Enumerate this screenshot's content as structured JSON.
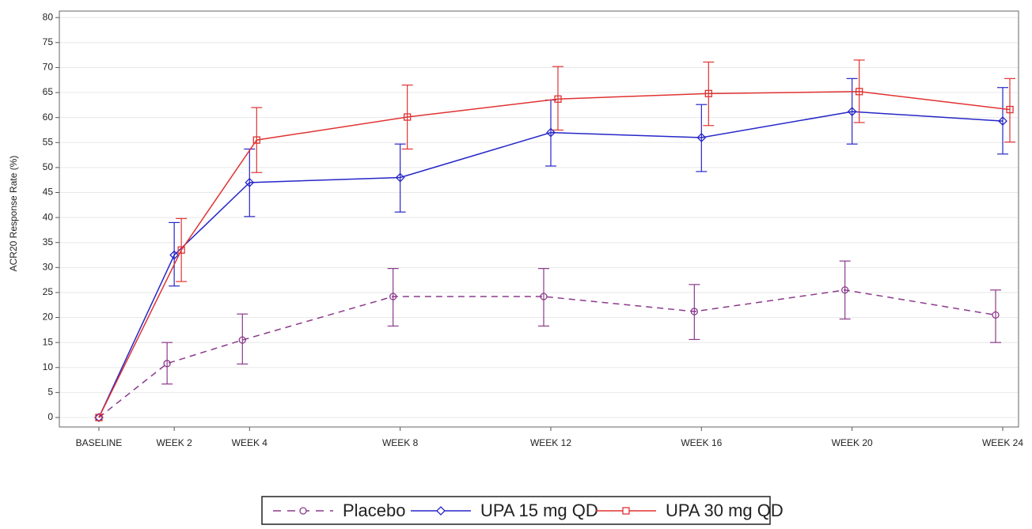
{
  "chart_data": {
    "type": "line",
    "y_label": "ACR20 Response Rate (%)",
    "x": [
      0,
      2,
      4,
      8,
      12,
      16,
      20,
      24
    ],
    "xlim": [
      -1.05,
      24.42
    ],
    "xticks": [
      {
        "value": 0,
        "label": "BASELINE"
      },
      {
        "value": 2,
        "label": "WEEK 2"
      },
      {
        "value": 4,
        "label": "WEEK 4"
      },
      {
        "value": 8,
        "label": "WEEK 8"
      },
      {
        "value": 12,
        "label": "WEEK 12"
      },
      {
        "value": 16,
        "label": "WEEK 16"
      },
      {
        "value": 20,
        "label": "WEEK 20"
      },
      {
        "value": 24,
        "label": "WEEK 24"
      }
    ],
    "ylim": [
      -1.9,
      81.3
    ],
    "yticks": [
      0,
      5,
      10,
      15,
      20,
      25,
      30,
      35,
      40,
      45,
      50,
      55,
      60,
      65,
      70,
      75,
      80
    ],
    "grid": true,
    "legend": "bottom",
    "series": [
      {
        "name": "Placebo",
        "color": "#8b3a8b",
        "marker": "circle",
        "dashed": true,
        "values": [
          0,
          10.8,
          15.5,
          24.2,
          24.2,
          21.2,
          25.5,
          20.5
        ],
        "lower": [
          null,
          6.7,
          10.7,
          18.3,
          18.3,
          15.6,
          19.7,
          15
        ],
        "upper": [
          null,
          15,
          20.7,
          29.8,
          29.8,
          26.6,
          31.3,
          25.5
        ]
      },
      {
        "name": "UPA 15 mg QD",
        "color": "#2626c8",
        "marker": "diamond",
        "dashed": false,
        "values": [
          0,
          32.5,
          47,
          48,
          57,
          56,
          61.2,
          59.3
        ],
        "lower": [
          null,
          26.3,
          40.2,
          41.1,
          50.3,
          49.2,
          54.7,
          52.7
        ],
        "upper": [
          null,
          39,
          53.7,
          54.7,
          63.5,
          62.6,
          67.8,
          66
        ]
      },
      {
        "name": "UPA 30 mg QD",
        "color": "#e03232",
        "marker": "square",
        "dashed": false,
        "values": [
          0,
          33.5,
          55.5,
          60.1,
          63.7,
          64.8,
          65.2,
          61.6
        ],
        "lower": [
          null,
          27.2,
          49,
          53.7,
          57.5,
          58.4,
          59,
          55.1
        ],
        "upper": [
          null,
          39.8,
          62,
          66.5,
          70.2,
          71.1,
          71.5,
          67.8
        ]
      }
    ]
  }
}
